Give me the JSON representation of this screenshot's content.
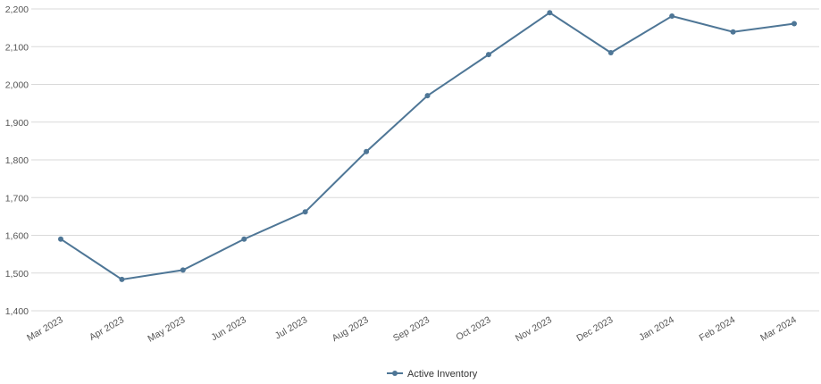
{
  "chart_data": {
    "type": "line",
    "title": "",
    "xlabel": "",
    "ylabel": "",
    "categories": [
      "Mar 2023",
      "Apr 2023",
      "May 2023",
      "Jun 2023",
      "Jul 2023",
      "Aug 2023",
      "Sep 2023",
      "Oct 2023",
      "Nov 2023",
      "Dec 2023",
      "Jan 2024",
      "Feb 2024",
      "Mar 2024"
    ],
    "series": [
      {
        "name": "Active Inventory",
        "color": "#4e7696",
        "values": [
          1590,
          1483,
          1508,
          1590,
          1662,
          1822,
          1970,
          2079,
          2190,
          2084,
          2181,
          2139,
          2161
        ]
      }
    ],
    "ylim": [
      1400,
      2200
    ],
    "yticks": [
      1400,
      1500,
      1600,
      1700,
      1800,
      1900,
      2000,
      2100,
      2200
    ],
    "ytick_labels": [
      "1,400",
      "1,500",
      "1,600",
      "1,700",
      "1,800",
      "1,900",
      "2,000",
      "2,100",
      "2,200"
    ],
    "grid": "horizontal",
    "legend_position": "bottom-center"
  }
}
